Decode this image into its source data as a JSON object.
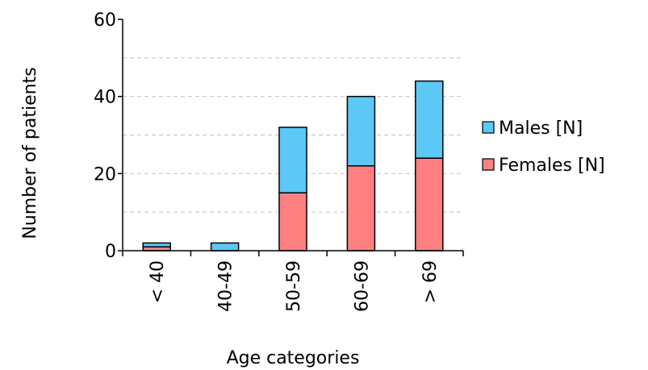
{
  "chart_data": {
    "type": "bar",
    "stacked": true,
    "title": "",
    "xlabel": "Age categories",
    "ylabel": "Number of patients",
    "categories": [
      "< 40",
      "40-49",
      "50-59",
      "60-69",
      "> 69"
    ],
    "series": [
      {
        "name": "Females [N]",
        "values": [
          1,
          0,
          15,
          22,
          24
        ],
        "color": "#ff8080"
      },
      {
        "name": "Males [N]",
        "values": [
          1,
          2,
          17,
          18,
          20
        ],
        "color": "#5bc8f5"
      }
    ],
    "ylim": [
      0,
      60
    ],
    "yticks": [
      0,
      20,
      40,
      60
    ],
    "grid": true,
    "legend_position": "right",
    "legend_order": [
      "Males [N]",
      "Females [N]"
    ]
  }
}
